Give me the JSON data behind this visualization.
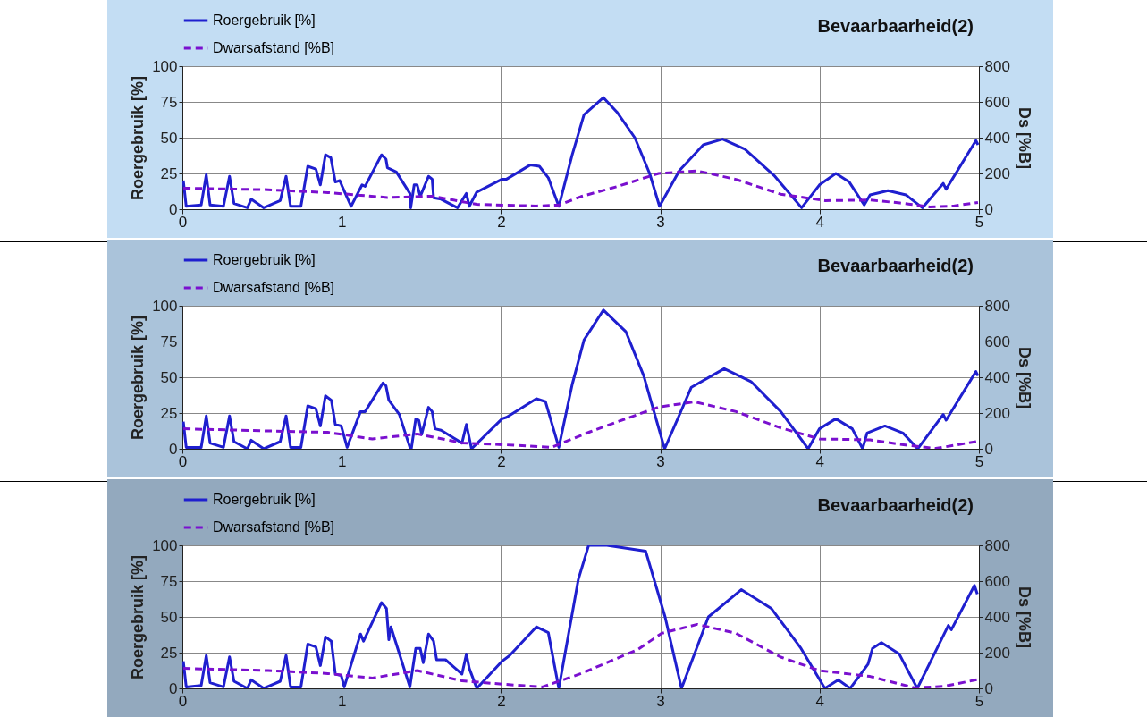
{
  "chart_data": [
    {
      "type": "line",
      "title": "Bevaarbaarheid(2)",
      "ylabel": "Roergebruik [%]",
      "y2label": "Ds [%B]",
      "xlim": [
        0,
        5
      ],
      "xticks": [
        0,
        1,
        2,
        3,
        4,
        5
      ],
      "ylim": [
        0,
        100
      ],
      "yticks": [
        0,
        25,
        50,
        75,
        100
      ],
      "y2lim": [
        0,
        800
      ],
      "y2ticks": [
        0,
        200,
        400,
        600,
        800
      ],
      "grid": true,
      "legend": "top left",
      "marker": "none",
      "series": [
        {
          "name": "Roergebruik [%]",
          "color": "#1f1fcf",
          "line_style": "solid",
          "x": [
            0.006,
            0.024,
            0.118,
            0.15,
            0.174,
            0.258,
            0.296,
            0.324,
            0.408,
            0.432,
            0.511,
            0.614,
            0.651,
            0.679,
            0.744,
            0.787,
            0.838,
            0.866,
            0.898,
            0.932,
            0.96,
            0.988,
            1.003,
            1.059,
            1.128,
            1.147,
            1.25,
            1.278,
            1.287,
            1.343,
            1.428,
            1.433,
            1.455,
            1.474,
            1.493,
            1.545,
            1.568,
            1.577,
            1.624,
            1.727,
            1.783,
            1.801,
            1.848,
            2.007,
            2.035,
            2.185,
            2.241,
            2.297,
            2.363,
            2.447,
            2.521,
            2.643,
            2.727,
            2.84,
            2.933,
            2.995,
            3.12,
            3.27,
            3.391,
            3.531,
            3.719,
            3.887,
            3.999,
            4.102,
            4.186,
            4.28,
            4.317,
            4.429,
            4.542,
            4.645,
            4.776,
            4.794,
            4.981,
            4.994
          ],
          "values": [
            20,
            2,
            3,
            24,
            3,
            2,
            23,
            4,
            1,
            7,
            1,
            6,
            23,
            2,
            2,
            30,
            28,
            17,
            38,
            36,
            19,
            20,
            16,
            2,
            17,
            16,
            38,
            35,
            29,
            26,
            11,
            1,
            17,
            17,
            9,
            23,
            21,
            8,
            7,
            1,
            11,
            2,
            12,
            21,
            21,
            31,
            30,
            22,
            2,
            38,
            66,
            78,
            68,
            50,
            25,
            2,
            27,
            45,
            49,
            42,
            23,
            1,
            17,
            25,
            19,
            3,
            10,
            13,
            10,
            1,
            18,
            14,
            48,
            45
          ]
        },
        {
          "name": "Dwarsafstand [%B]",
          "color": "#7a10cf",
          "line_style": "dashed",
          "axis": "y2",
          "x": [
            0.006,
            0.539,
            0.913,
            1.287,
            1.568,
            1.848,
            2.222,
            2.363,
            2.503,
            2.727,
            2.989,
            3.232,
            3.475,
            3.756,
            4.036,
            4.317,
            4.504,
            4.691,
            4.841,
            4.994
          ],
          "values": [
            118,
            109,
            93,
            65,
            73,
            27,
            18,
            23,
            71,
            126,
            200,
            214,
            167,
            84,
            48,
            51,
            35,
            13,
            18,
            38
          ]
        }
      ]
    },
    {
      "type": "line",
      "title": "Bevaarbaarheid(2)",
      "ylabel": "Roergebruik [%]",
      "y2label": "Ds [%B]",
      "xlim": [
        0,
        5
      ],
      "xticks": [
        0,
        1,
        2,
        3,
        4,
        5
      ],
      "ylim": [
        0,
        100
      ],
      "yticks": [
        0,
        25,
        50,
        75,
        100
      ],
      "y2lim": [
        0,
        800
      ],
      "y2ticks": [
        0,
        200,
        400,
        600,
        800
      ],
      "grid": true,
      "legend": "top left",
      "marker": "none",
      "series": [
        {
          "name": "Roergebruik [%]",
          "color": "#1f1fcf",
          "line_style": "solid",
          "x": [
            0.006,
            0.024,
            0.118,
            0.15,
            0.174,
            0.258,
            0.296,
            0.324,
            0.408,
            0.432,
            0.511,
            0.614,
            0.651,
            0.679,
            0.744,
            0.787,
            0.838,
            0.866,
            0.898,
            0.935,
            0.96,
            0.997,
            1.034,
            1.118,
            1.147,
            1.259,
            1.278,
            1.296,
            1.362,
            1.428,
            1.437,
            1.465,
            1.484,
            1.502,
            1.545,
            1.568,
            1.586,
            1.624,
            1.755,
            1.783,
            1.815,
            2.007,
            2.035,
            2.222,
            2.279,
            2.363,
            2.447,
            2.521,
            2.643,
            2.783,
            2.896,
            3.027,
            3.195,
            3.401,
            3.569,
            3.756,
            3.928,
            3.999,
            4.102,
            4.205,
            4.27,
            4.298,
            4.41,
            4.523,
            4.616,
            4.776,
            4.794,
            4.981,
            4.994
          ],
          "values": [
            19,
            1,
            1,
            23,
            4,
            1,
            23,
            5,
            0,
            6,
            0,
            5,
            23,
            1,
            1,
            30,
            28,
            16,
            37,
            34,
            17,
            16,
            1,
            26,
            26,
            46,
            44,
            34,
            24,
            1,
            0,
            21,
            20,
            10,
            29,
            26,
            14,
            13,
            4,
            17,
            0,
            21,
            22,
            35,
            33,
            1,
            45,
            76,
            97,
            82,
            51,
            0,
            43,
            56,
            47,
            26,
            0,
            14,
            21,
            14,
            0,
            11,
            16,
            11,
            0,
            24,
            20,
            54,
            51
          ]
        },
        {
          "name": "Dwarsafstand [%B]",
          "color": "#7a10cf",
          "line_style": "dashed",
          "axis": "y2",
          "x": [
            0.006,
            0.539,
            0.913,
            1.193,
            1.474,
            1.755,
            2.035,
            2.316,
            2.559,
            2.727,
            2.989,
            3.213,
            3.475,
            3.756,
            3.999,
            4.317,
            4.504,
            4.729,
            4.994
          ],
          "values": [
            112,
            100,
            92,
            55,
            83,
            33,
            22,
            8,
            95,
            150,
            233,
            263,
            208,
            117,
            55,
            50,
            25,
            2,
            42
          ]
        }
      ]
    },
    {
      "type": "line",
      "title": "Bevaarbaarheid(2)",
      "ylabel": "Roergebruik [%]",
      "y2label": "Ds [%B]",
      "xlim": [
        0,
        5
      ],
      "xticks": [
        0,
        1,
        2,
        3,
        4,
        5
      ],
      "ylim": [
        0,
        100
      ],
      "yticks": [
        0,
        25,
        50,
        75,
        100
      ],
      "y2lim": [
        0,
        800
      ],
      "y2ticks": [
        0,
        200,
        400,
        600,
        800
      ],
      "grid": true,
      "legend": "top left",
      "marker": "none",
      "series": [
        {
          "name": "Roergebruik [%]",
          "color": "#1f1fcf",
          "line_style": "solid",
          "x": [
            0.006,
            0.024,
            0.118,
            0.15,
            0.174,
            0.258,
            0.296,
            0.324,
            0.408,
            0.432,
            0.511,
            0.614,
            0.651,
            0.679,
            0.744,
            0.787,
            0.838,
            0.866,
            0.898,
            0.935,
            0.96,
            0.997,
            1.016,
            1.118,
            1.137,
            1.25,
            1.281,
            1.296,
            1.309,
            1.428,
            1.465,
            1.493,
            1.512,
            1.545,
            1.577,
            1.596,
            1.652,
            1.755,
            1.783,
            1.801,
            1.848,
            2.007,
            2.054,
            2.222,
            2.297,
            2.363,
            2.485,
            2.55,
            2.58,
            2.665,
            2.908,
            3.03,
            3.133,
            3.302,
            3.508,
            3.696,
            3.883,
            4.033,
            4.117,
            4.192,
            4.304,
            4.332,
            4.388,
            4.5,
            4.613,
            4.808,
            4.827,
            4.972,
            4.99
          ],
          "values": [
            19,
            1,
            2,
            23,
            4,
            1,
            22,
            5,
            0,
            6,
            0,
            5,
            23,
            1,
            1,
            31,
            29,
            16,
            36,
            33,
            10,
            9,
            1,
            38,
            33,
            60,
            56,
            34,
            43,
            1,
            28,
            28,
            18,
            38,
            33,
            20,
            20,
            10,
            24,
            14,
            0,
            19,
            23,
            43,
            39,
            0,
            76,
            100,
            100,
            100,
            96,
            50,
            0,
            50,
            69,
            56,
            28,
            0,
            6,
            0,
            17,
            28,
            32,
            24,
            0,
            44,
            41,
            72,
            66
          ]
        },
        {
          "name": "Dwarsafstand [%B]",
          "color": "#7a10cf",
          "line_style": "dashed",
          "axis": "y2",
          "x": [
            0.006,
            0.539,
            0.913,
            1.193,
            1.474,
            1.755,
            2.035,
            2.26,
            2.503,
            2.858,
            3.008,
            3.232,
            3.475,
            3.756,
            3.999,
            4.317,
            4.598,
            4.785,
            4.994
          ],
          "values": [
            112,
            100,
            83,
            58,
            100,
            42,
            22,
            8,
            83,
            217,
            308,
            358,
            308,
            175,
            100,
            67,
            3,
            12,
            50
          ]
        }
      ]
    }
  ]
}
